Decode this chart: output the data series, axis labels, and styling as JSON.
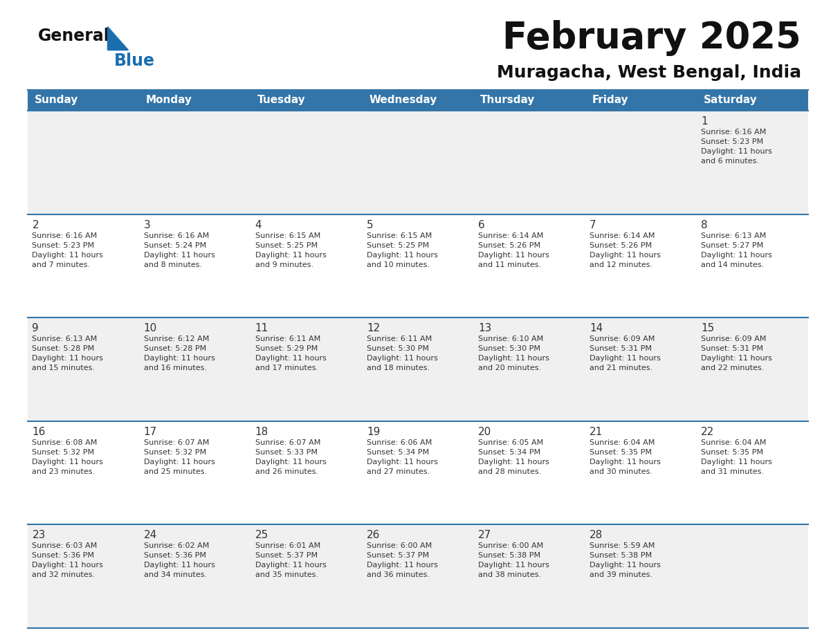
{
  "title": "February 2025",
  "subtitle": "Muragacha, West Bengal, India",
  "header_bg": "#3375a8",
  "header_text": "#ffffff",
  "cell_bg_even": "#f0f0f0",
  "cell_bg_odd": "#ffffff",
  "line_color": "#3375a8",
  "text_color": "#333333",
  "days_of_week": [
    "Sunday",
    "Monday",
    "Tuesday",
    "Wednesday",
    "Thursday",
    "Friday",
    "Saturday"
  ],
  "calendar": [
    [
      null,
      null,
      null,
      null,
      null,
      null,
      {
        "day": "1",
        "sunrise": "6:16 AM",
        "sunset": "5:23 PM",
        "daylight": "11 hours and 6 minutes."
      }
    ],
    [
      {
        "day": "2",
        "sunrise": "6:16 AM",
        "sunset": "5:23 PM",
        "daylight": "11 hours and 7 minutes."
      },
      {
        "day": "3",
        "sunrise": "6:16 AM",
        "sunset": "5:24 PM",
        "daylight": "11 hours and 8 minutes."
      },
      {
        "day": "4",
        "sunrise": "6:15 AM",
        "sunset": "5:25 PM",
        "daylight": "11 hours and 9 minutes."
      },
      {
        "day": "5",
        "sunrise": "6:15 AM",
        "sunset": "5:25 PM",
        "daylight": "11 hours and 10 minutes."
      },
      {
        "day": "6",
        "sunrise": "6:14 AM",
        "sunset": "5:26 PM",
        "daylight": "11 hours and 11 minutes."
      },
      {
        "day": "7",
        "sunrise": "6:14 AM",
        "sunset": "5:26 PM",
        "daylight": "11 hours and 12 minutes."
      },
      {
        "day": "8",
        "sunrise": "6:13 AM",
        "sunset": "5:27 PM",
        "daylight": "11 hours and 14 minutes."
      }
    ],
    [
      {
        "day": "9",
        "sunrise": "6:13 AM",
        "sunset": "5:28 PM",
        "daylight": "11 hours and 15 minutes."
      },
      {
        "day": "10",
        "sunrise": "6:12 AM",
        "sunset": "5:28 PM",
        "daylight": "11 hours and 16 minutes."
      },
      {
        "day": "11",
        "sunrise": "6:11 AM",
        "sunset": "5:29 PM",
        "daylight": "11 hours and 17 minutes."
      },
      {
        "day": "12",
        "sunrise": "6:11 AM",
        "sunset": "5:30 PM",
        "daylight": "11 hours and 18 minutes."
      },
      {
        "day": "13",
        "sunrise": "6:10 AM",
        "sunset": "5:30 PM",
        "daylight": "11 hours and 20 minutes."
      },
      {
        "day": "14",
        "sunrise": "6:09 AM",
        "sunset": "5:31 PM",
        "daylight": "11 hours and 21 minutes."
      },
      {
        "day": "15",
        "sunrise": "6:09 AM",
        "sunset": "5:31 PM",
        "daylight": "11 hours and 22 minutes."
      }
    ],
    [
      {
        "day": "16",
        "sunrise": "6:08 AM",
        "sunset": "5:32 PM",
        "daylight": "11 hours and 23 minutes."
      },
      {
        "day": "17",
        "sunrise": "6:07 AM",
        "sunset": "5:32 PM",
        "daylight": "11 hours and 25 minutes."
      },
      {
        "day": "18",
        "sunrise": "6:07 AM",
        "sunset": "5:33 PM",
        "daylight": "11 hours and 26 minutes."
      },
      {
        "day": "19",
        "sunrise": "6:06 AM",
        "sunset": "5:34 PM",
        "daylight": "11 hours and 27 minutes."
      },
      {
        "day": "20",
        "sunrise": "6:05 AM",
        "sunset": "5:34 PM",
        "daylight": "11 hours and 28 minutes."
      },
      {
        "day": "21",
        "sunrise": "6:04 AM",
        "sunset": "5:35 PM",
        "daylight": "11 hours and 30 minutes."
      },
      {
        "day": "22",
        "sunrise": "6:04 AM",
        "sunset": "5:35 PM",
        "daylight": "11 hours and 31 minutes."
      }
    ],
    [
      {
        "day": "23",
        "sunrise": "6:03 AM",
        "sunset": "5:36 PM",
        "daylight": "11 hours and 32 minutes."
      },
      {
        "day": "24",
        "sunrise": "6:02 AM",
        "sunset": "5:36 PM",
        "daylight": "11 hours and 34 minutes."
      },
      {
        "day": "25",
        "sunrise": "6:01 AM",
        "sunset": "5:37 PM",
        "daylight": "11 hours and 35 minutes."
      },
      {
        "day": "26",
        "sunrise": "6:00 AM",
        "sunset": "5:37 PM",
        "daylight": "11 hours and 36 minutes."
      },
      {
        "day": "27",
        "sunrise": "6:00 AM",
        "sunset": "5:38 PM",
        "daylight": "11 hours and 38 minutes."
      },
      {
        "day": "28",
        "sunrise": "5:59 AM",
        "sunset": "5:38 PM",
        "daylight": "11 hours and 39 minutes."
      },
      null
    ]
  ],
  "logo_triangle_color": "#1a6faf",
  "title_fontsize": 38,
  "subtitle_fontsize": 18,
  "day_name_fontsize": 11,
  "day_num_fontsize": 11,
  "cell_fontsize": 8
}
